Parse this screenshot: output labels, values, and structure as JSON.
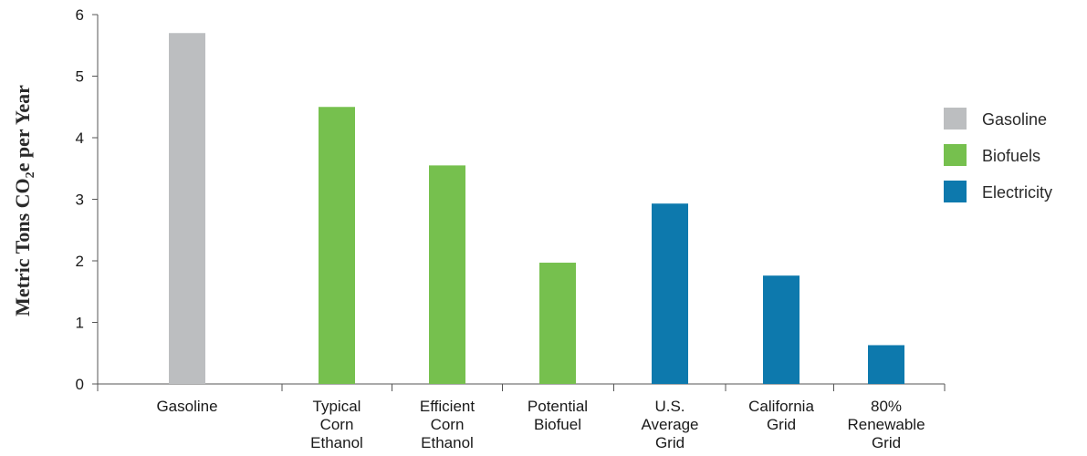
{
  "chart_data": {
    "type": "bar",
    "title": "",
    "ylabel_parts": {
      "before": "Metric Tons CO",
      "subscript": "2",
      "after": "e per Year"
    },
    "xlabel": "",
    "ylim": [
      0,
      6
    ],
    "yticks": [
      0,
      1,
      2,
      3,
      4,
      5,
      6
    ],
    "categories": [
      [
        "Gasoline"
      ],
      [
        "Typical",
        "Corn",
        "Ethanol"
      ],
      [
        "Efficient",
        "Corn",
        "Ethanol"
      ],
      [
        "Potential",
        "Biofuel"
      ],
      [
        "U.S.",
        "Average",
        "Grid"
      ],
      [
        "California",
        "Grid"
      ],
      [
        "80%",
        "Renewable",
        "Grid"
      ]
    ],
    "values": [
      5.7,
      4.5,
      3.55,
      1.97,
      2.93,
      1.76,
      0.63
    ],
    "groups": [
      "Gasoline",
      "Biofuels",
      "Biofuels",
      "Biofuels",
      "Electricity",
      "Electricity",
      "Electricity"
    ],
    "legend": [
      {
        "name": "Gasoline",
        "color": "#bcbec0"
      },
      {
        "name": "Biofuels",
        "color": "#76c04e"
      },
      {
        "name": "Electricity",
        "color": "#0d79ad"
      }
    ],
    "legend_position": "right",
    "grid": false
  }
}
